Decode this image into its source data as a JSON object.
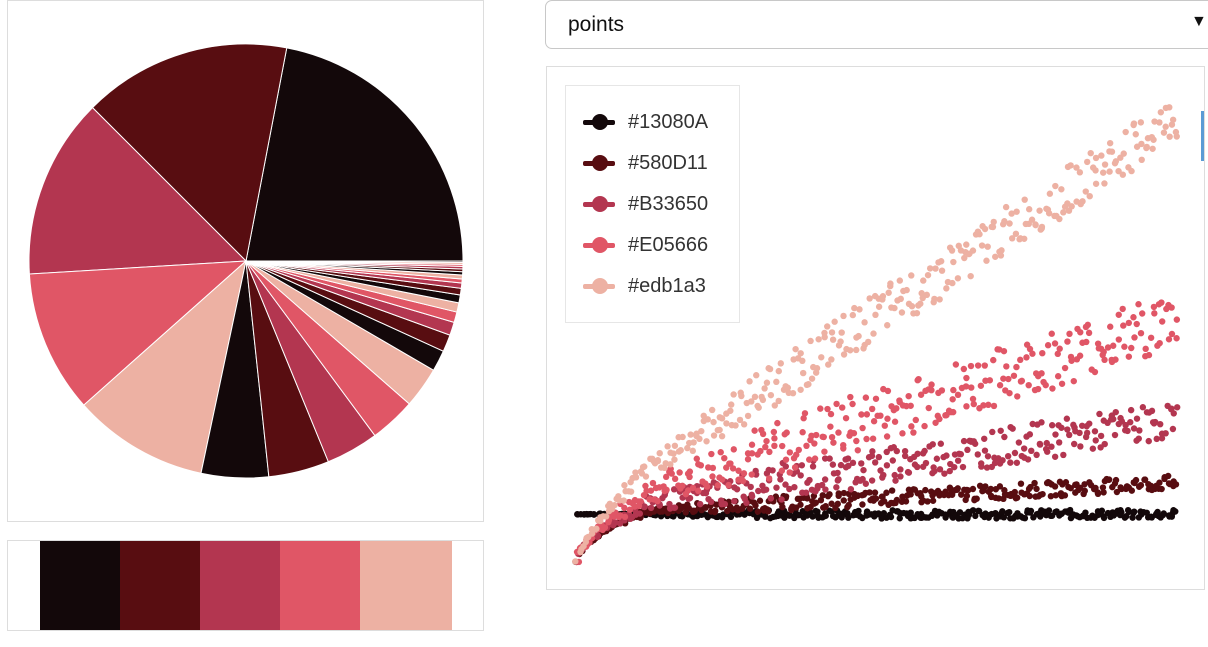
{
  "selector": {
    "value": "points",
    "caret_icon": "triangle-down-icon"
  },
  "palette": [
    "#13080A",
    "#580D11",
    "#B33650",
    "#E05666",
    "#edb1a3"
  ],
  "legend": {
    "items": [
      {
        "label": "#13080A",
        "color": "#13080A"
      },
      {
        "label": "#580D11",
        "color": "#580D11"
      },
      {
        "label": "#B33650",
        "color": "#B33650"
      },
      {
        "label": "#E05666",
        "color": "#E05666"
      },
      {
        "label": "#edb1a3",
        "color": "#edb1a3"
      }
    ]
  },
  "pie": {
    "slice_weights": [
      22.4,
      15.8,
      13.7,
      10.8,
      10.3,
      5.1,
      4.6,
      4.0,
      3.5,
      3.1,
      1.6,
      1.3,
      1.0,
      0.8,
      0.7,
      0.6,
      0.5,
      0.4,
      0.3,
      0.3,
      0.25,
      0.2,
      0.2,
      0.15,
      0.15,
      0.1
    ],
    "slice_colors": [
      "#13080A",
      "#580D11",
      "#B33650",
      "#E05666",
      "#edb1a3",
      "#13080A",
      "#580D11",
      "#B33650",
      "#E05666",
      "#edb1a3",
      "#13080A",
      "#580D11",
      "#B33650",
      "#E05666",
      "#edb1a3",
      "#13080A",
      "#580D11",
      "#B33650",
      "#E05666",
      "#edb1a3",
      "#13080A",
      "#580D11",
      "#B33650",
      "#E05666",
      "#edb1a3",
      "#13080A"
    ]
  },
  "scatter": {
    "series": [
      {
        "color": "#13080A",
        "start": 0.0,
        "end": 0.0,
        "spread": 0.08
      },
      {
        "color": "#580D11",
        "start": 0.0,
        "end": 0.6,
        "spread": 0.14
      },
      {
        "color": "#B33650",
        "start": 0.0,
        "end": 1.8,
        "spread": 0.35
      },
      {
        "color": "#E05666",
        "start": 0.0,
        "end": 3.7,
        "spread": 0.55
      },
      {
        "color": "#edb1a3",
        "start": 0.0,
        "end": 7.5,
        "spread": 0.45
      }
    ],
    "y_range": [
      -1.0,
      8.0
    ]
  }
}
